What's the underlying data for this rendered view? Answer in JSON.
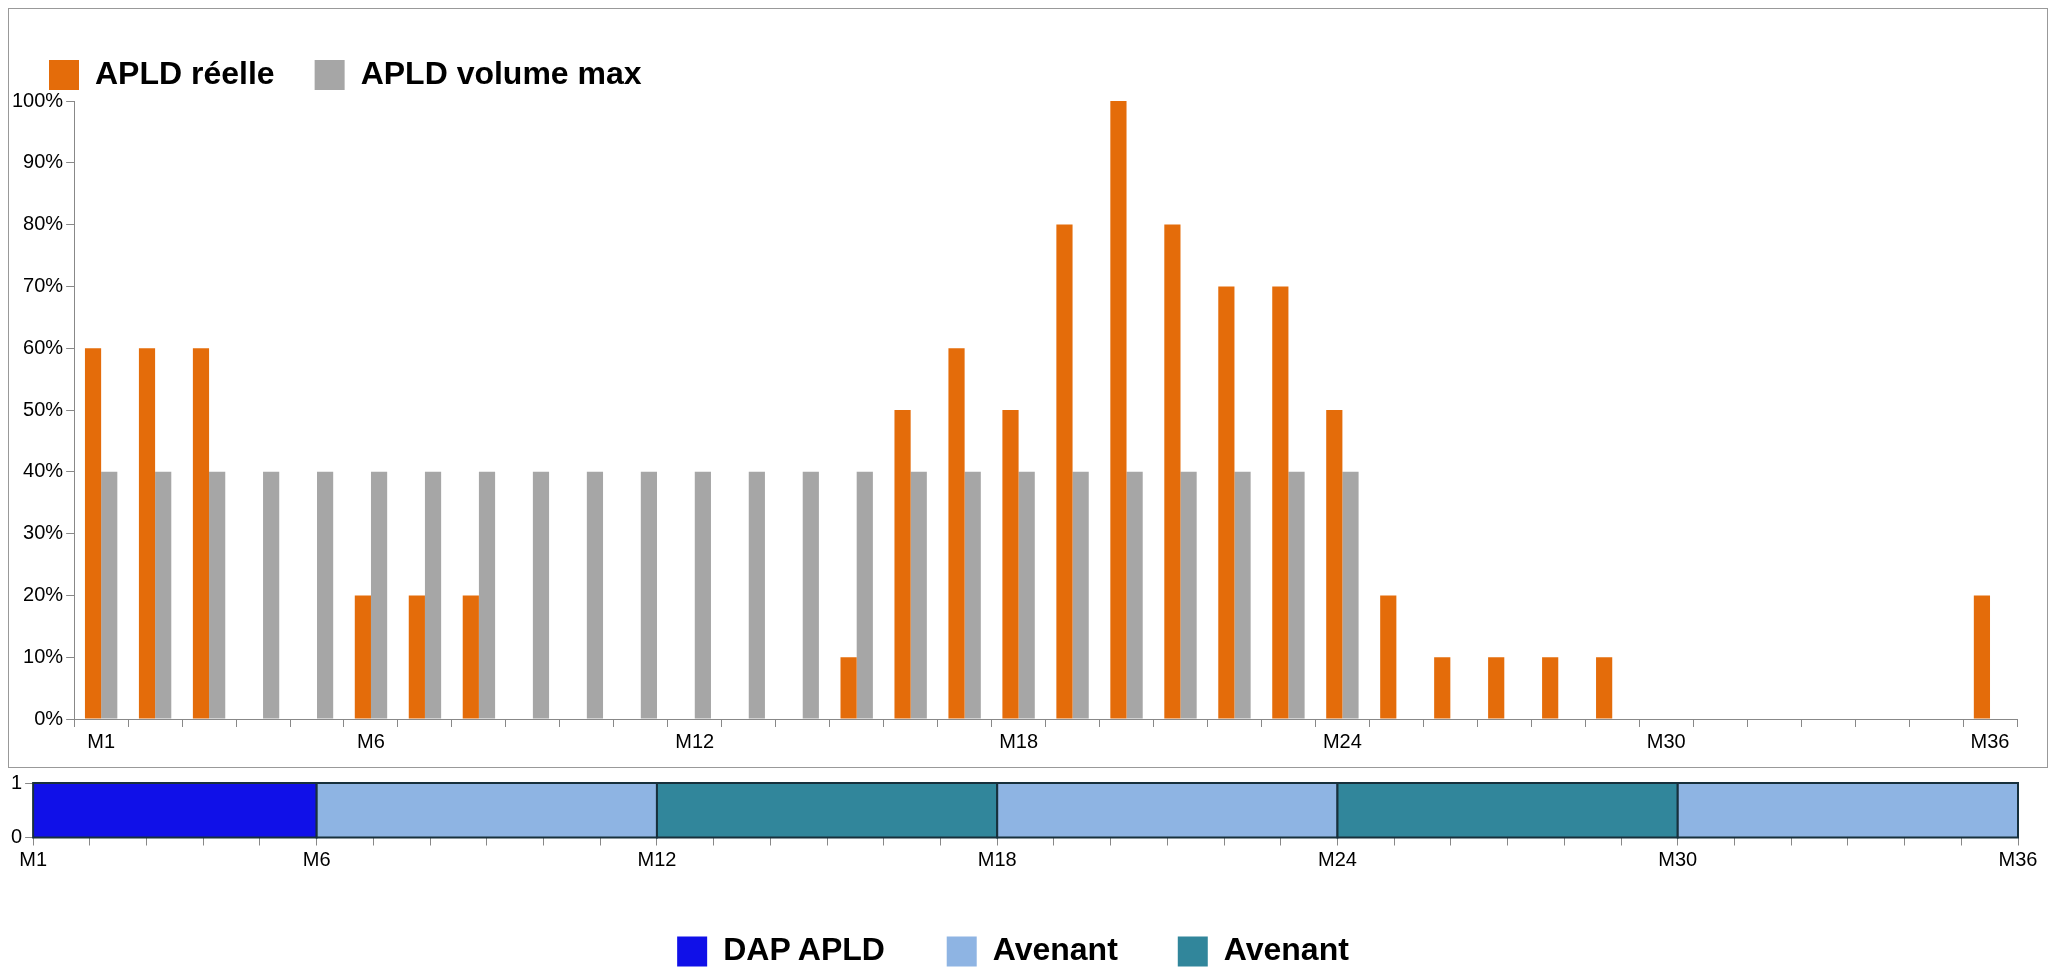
{
  "chart_data": [
    {
      "type": "bar",
      "categories": [
        "M1",
        null,
        null,
        null,
        null,
        "M6",
        null,
        null,
        null,
        null,
        null,
        "M12",
        null,
        null,
        null,
        null,
        null,
        "M18",
        null,
        null,
        null,
        null,
        null,
        "M24",
        null,
        null,
        null,
        null,
        null,
        "M30",
        null,
        null,
        null,
        null,
        null,
        "M36"
      ],
      "series": [
        {
          "name": "APLD réelle",
          "color": "#e46c0a",
          "values": [
            60,
            60,
            60,
            0,
            0,
            20,
            20,
            20,
            0,
            0,
            0,
            0,
            0,
            0,
            10,
            50,
            60,
            50,
            80,
            100,
            80,
            70,
            70,
            50,
            20,
            10,
            10,
            10,
            10,
            0,
            0,
            0,
            0,
            0,
            0,
            20
          ]
        },
        {
          "name": "APLD volume max",
          "color": "#a6a6a6",
          "values": [
            40,
            40,
            40,
            40,
            40,
            40,
            40,
            40,
            40,
            40,
            40,
            40,
            40,
            40,
            40,
            40,
            40,
            40,
            40,
            40,
            40,
            40,
            40,
            40,
            0,
            0,
            0,
            0,
            0,
            0,
            0,
            0,
            0,
            0,
            0,
            0
          ]
        }
      ],
      "ylim": [
        0,
        100
      ],
      "yticks": [
        {
          "value": 0,
          "label": "0%"
        },
        {
          "value": 10,
          "label": "10%"
        },
        {
          "value": 20,
          "label": "20%"
        },
        {
          "value": 30,
          "label": "30%"
        },
        {
          "value": 40,
          "label": "40%"
        },
        {
          "value": 50,
          "label": "50%"
        },
        {
          "value": 60,
          "label": "60%"
        },
        {
          "value": 70,
          "label": "70%"
        },
        {
          "value": 80,
          "label": "80%"
        },
        {
          "value": 90,
          "label": "90%"
        },
        {
          "value": 100,
          "label": "100%"
        }
      ],
      "grid": false,
      "legend": "top left"
    },
    {
      "type": "bar",
      "categories": [
        "M1",
        null,
        null,
        null,
        null,
        "M6",
        null,
        null,
        null,
        null,
        null,
        "M12",
        null,
        null,
        null,
        null,
        null,
        "M18",
        null,
        null,
        null,
        null,
        null,
        "M24",
        null,
        null,
        null,
        null,
        null,
        "M30",
        null,
        null,
        null,
        null,
        null,
        "M36"
      ],
      "bands": [
        {
          "axis": "x",
          "from": "M1",
          "to": "M6",
          "label": "DAP APLD",
          "color": "#1010e8"
        },
        {
          "axis": "x",
          "from": "M6",
          "to": "M12",
          "label": "Avenant",
          "color": "#8eb4e3"
        },
        {
          "axis": "x",
          "from": "M12",
          "to": "M18",
          "label": "Avenant",
          "color": "#31869b"
        },
        {
          "axis": "x",
          "from": "M18",
          "to": "M24",
          "color": "#8eb4e3"
        },
        {
          "axis": "x",
          "from": "M24",
          "to": "M30",
          "color": "#31869b"
        },
        {
          "axis": "x",
          "from": "M30",
          "to": "M36",
          "color": "#8eb4e3"
        }
      ],
      "ylim": [
        0,
        1
      ],
      "yticks": [
        0,
        1
      ],
      "grid": false,
      "legend": "bottom"
    }
  ]
}
